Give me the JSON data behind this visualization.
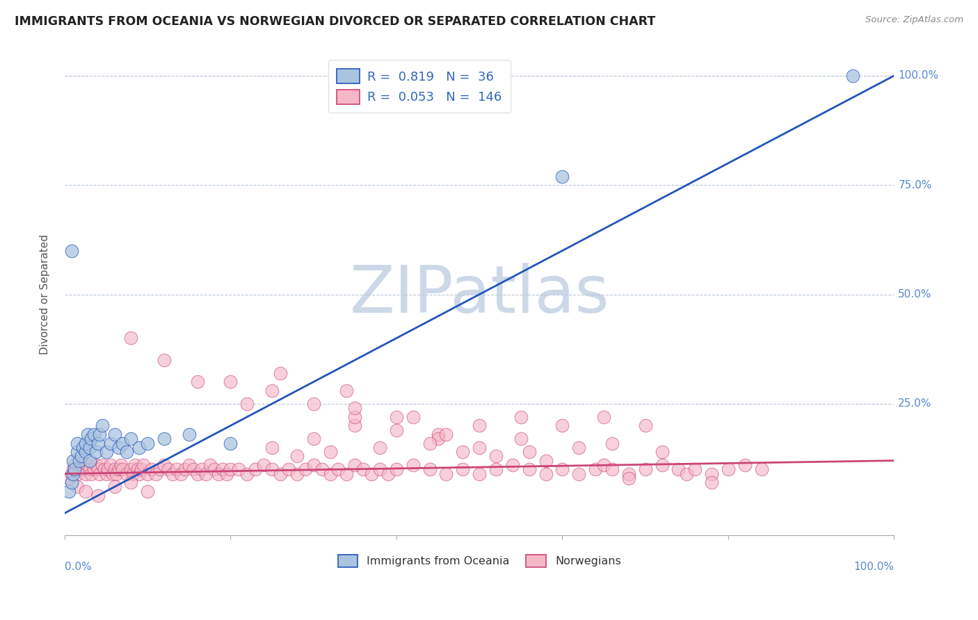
{
  "title": "IMMIGRANTS FROM OCEANIA VS NORWEGIAN DIVORCED OR SEPARATED CORRELATION CHART",
  "source": "Source: ZipAtlas.com",
  "ylabel": "Divorced or Separated",
  "blue_R": 0.819,
  "blue_N": 36,
  "pink_R": 0.053,
  "pink_N": 146,
  "blue_color": "#aac4e0",
  "blue_line_color": "#2255bb",
  "pink_color": "#f5b8c8",
  "pink_line_color": "#cc4477",
  "watermark_text": "ZIPatlas",
  "watermark_color": "#ccd8e8",
  "legend_label_blue": "Immigrants from Oceania",
  "legend_label_pink": "Norwegians",
  "blue_scatter_x": [
    0.005,
    0.008,
    0.01,
    0.01,
    0.012,
    0.015,
    0.015,
    0.018,
    0.02,
    0.022,
    0.025,
    0.025,
    0.028,
    0.03,
    0.03,
    0.032,
    0.035,
    0.038,
    0.04,
    0.042,
    0.045,
    0.05,
    0.055,
    0.06,
    0.065,
    0.07,
    0.075,
    0.08,
    0.09,
    0.1,
    0.12,
    0.15,
    0.2,
    0.6,
    0.95,
    0.008
  ],
  "blue_scatter_y": [
    0.05,
    0.07,
    0.09,
    0.12,
    0.1,
    0.14,
    0.16,
    0.12,
    0.13,
    0.15,
    0.14,
    0.16,
    0.18,
    0.12,
    0.15,
    0.17,
    0.18,
    0.14,
    0.16,
    0.18,
    0.2,
    0.14,
    0.16,
    0.18,
    0.15,
    0.16,
    0.14,
    0.17,
    0.15,
    0.16,
    0.17,
    0.18,
    0.16,
    0.77,
    1.0,
    0.6
  ],
  "pink_scatter_x": [
    0.005,
    0.008,
    0.01,
    0.012,
    0.015,
    0.018,
    0.02,
    0.022,
    0.025,
    0.028,
    0.03,
    0.032,
    0.035,
    0.038,
    0.04,
    0.042,
    0.045,
    0.048,
    0.05,
    0.052,
    0.055,
    0.058,
    0.06,
    0.062,
    0.065,
    0.068,
    0.07,
    0.075,
    0.08,
    0.082,
    0.085,
    0.088,
    0.09,
    0.092,
    0.095,
    0.1,
    0.105,
    0.11,
    0.115,
    0.12,
    0.125,
    0.13,
    0.135,
    0.14,
    0.145,
    0.15,
    0.155,
    0.16,
    0.165,
    0.17,
    0.175,
    0.18,
    0.185,
    0.19,
    0.195,
    0.2,
    0.21,
    0.22,
    0.23,
    0.24,
    0.25,
    0.26,
    0.27,
    0.28,
    0.29,
    0.3,
    0.31,
    0.32,
    0.33,
    0.34,
    0.35,
    0.36,
    0.37,
    0.38,
    0.39,
    0.4,
    0.42,
    0.44,
    0.46,
    0.48,
    0.5,
    0.52,
    0.54,
    0.56,
    0.58,
    0.6,
    0.62,
    0.64,
    0.65,
    0.66,
    0.68,
    0.7,
    0.72,
    0.74,
    0.75,
    0.76,
    0.78,
    0.8,
    0.82,
    0.84,
    0.35,
    0.4,
    0.45,
    0.5,
    0.55,
    0.6,
    0.65,
    0.7,
    0.3,
    0.35,
    0.25,
    0.3,
    0.4,
    0.45,
    0.5,
    0.55,
    0.2,
    0.25,
    0.35,
    0.42,
    0.28,
    0.32,
    0.38,
    0.44,
    0.48,
    0.52,
    0.56,
    0.62,
    0.66,
    0.72,
    0.08,
    0.12,
    0.16,
    0.22,
    0.26,
    0.34,
    0.46,
    0.58,
    0.68,
    0.78,
    0.015,
    0.025,
    0.04,
    0.06,
    0.08,
    0.1
  ],
  "pink_scatter_y": [
    0.08,
    0.09,
    0.1,
    0.11,
    0.09,
    0.1,
    0.11,
    0.1,
    0.09,
    0.11,
    0.1,
    0.09,
    0.1,
    0.11,
    0.1,
    0.09,
    0.11,
    0.1,
    0.09,
    0.1,
    0.11,
    0.09,
    0.1,
    0.09,
    0.1,
    0.11,
    0.1,
    0.09,
    0.1,
    0.09,
    0.11,
    0.1,
    0.09,
    0.1,
    0.11,
    0.09,
    0.1,
    0.09,
    0.1,
    0.11,
    0.1,
    0.09,
    0.1,
    0.09,
    0.1,
    0.11,
    0.1,
    0.09,
    0.1,
    0.09,
    0.11,
    0.1,
    0.09,
    0.1,
    0.09,
    0.1,
    0.1,
    0.09,
    0.1,
    0.11,
    0.1,
    0.09,
    0.1,
    0.09,
    0.1,
    0.11,
    0.1,
    0.09,
    0.1,
    0.09,
    0.11,
    0.1,
    0.09,
    0.1,
    0.09,
    0.1,
    0.11,
    0.1,
    0.09,
    0.1,
    0.09,
    0.1,
    0.11,
    0.1,
    0.09,
    0.1,
    0.09,
    0.1,
    0.11,
    0.1,
    0.09,
    0.1,
    0.11,
    0.1,
    0.09,
    0.1,
    0.09,
    0.1,
    0.11,
    0.1,
    0.2,
    0.22,
    0.18,
    0.2,
    0.22,
    0.2,
    0.22,
    0.2,
    0.25,
    0.22,
    0.15,
    0.17,
    0.19,
    0.17,
    0.15,
    0.17,
    0.3,
    0.28,
    0.24,
    0.22,
    0.13,
    0.14,
    0.15,
    0.16,
    0.14,
    0.13,
    0.14,
    0.15,
    0.16,
    0.14,
    0.4,
    0.35,
    0.3,
    0.25,
    0.32,
    0.28,
    0.18,
    0.12,
    0.08,
    0.07,
    0.06,
    0.05,
    0.04,
    0.06,
    0.07,
    0.05
  ],
  "blue_line_x0": 0.0,
  "blue_line_y0": 0.0,
  "blue_line_x1": 1.0,
  "blue_line_y1": 1.0,
  "pink_line_x0": 0.0,
  "pink_line_y0": 0.09,
  "pink_line_x1": 1.0,
  "pink_line_y1": 0.12,
  "ylim_min": -0.05,
  "ylim_max": 1.05,
  "xlim_min": 0.0,
  "xlim_max": 1.0
}
